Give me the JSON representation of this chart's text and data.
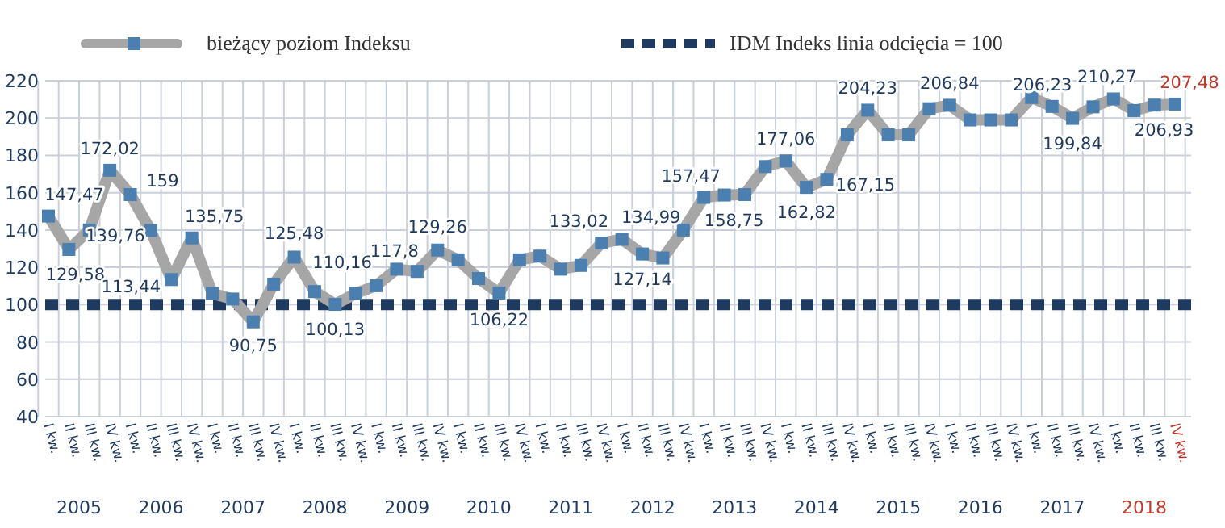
{
  "chart_data": {
    "type": "line",
    "categories": [
      "I kw.",
      "II kw.",
      "III kw.",
      "IV kw.",
      "I kw.",
      "II kw.",
      "III kw.",
      "IV kw.",
      "I kw.",
      "II kw.",
      "III kw.",
      "IV kw.",
      "I kw.",
      "II kw.",
      "III kw.",
      "IV kw.",
      "I kw.",
      "II kw.",
      "III kw.",
      "IV kw.",
      "I kw.",
      "II kw.",
      "III kw.",
      "IV kw.",
      "I kw.",
      "II kw.",
      "III kw.",
      "IV kw.",
      "I kw.",
      "II kw.",
      "III kw.",
      "IV kw.",
      "I kw.",
      "II kw.",
      "III kw.",
      "IV kw.",
      "I kw.",
      "II kw.",
      "III kw.",
      "IV kw.",
      "I kw.",
      "II kw.",
      "III kw.",
      "IV kw.",
      "I kw.",
      "II kw.",
      "III kw.",
      "IV kw.",
      "I kw.",
      "II kw.",
      "III kw.",
      "IV kw.",
      "I kw.",
      "II kw.",
      "III kw.",
      "IV kw."
    ],
    "series": [
      {
        "name": "bieżący poziom Indeksu",
        "color": "#4a7fb0",
        "values": [
          147.47,
          129.58,
          140,
          172.02,
          159,
          139.76,
          113.44,
          135.75,
          106,
          103,
          90.75,
          111,
          125.48,
          107,
          100.13,
          106,
          110.16,
          119,
          117.8,
          129.26,
          124,
          114,
          106.22,
          124,
          126,
          119,
          121,
          133.02,
          134.99,
          127.14,
          125,
          140,
          157.47,
          158.75,
          159,
          174,
          177.06,
          162.82,
          167.15,
          191,
          204.23,
          191,
          191,
          205,
          206.84,
          199,
          199,
          199,
          211,
          206.23,
          199.84,
          206,
          210.27,
          204,
          206.93,
          207.48
        ],
        "value_labels": [
          "147,47",
          "129,58",
          null,
          "172,02",
          "159",
          "139,76",
          "113,44",
          "135,75",
          null,
          null,
          "90,75",
          null,
          "125,48",
          null,
          "100,13",
          null,
          "110,16",
          null,
          "117,8",
          "129,26",
          null,
          null,
          "106,22",
          null,
          null,
          null,
          null,
          "133,02",
          "134,99",
          "127,14",
          null,
          null,
          "157,47",
          "158,75",
          null,
          null,
          "177,06",
          "162,82",
          "167,15",
          null,
          "204,23",
          null,
          null,
          null,
          "206,84",
          null,
          null,
          null,
          null,
          "206,23",
          "199,84",
          null,
          "210,27",
          null,
          "206,93",
          "207,48"
        ]
      }
    ],
    "ref_lines": [
      {
        "axis": "y",
        "value": 100,
        "label": "IDM Indeks linia odcięcia = 100",
        "color": "#1f3a5f",
        "line_style": "dashed"
      }
    ],
    "annotations": [
      "2005",
      "2006",
      "2007",
      "2008",
      "2009",
      "2010",
      "2011",
      "2012",
      "2013",
      "2014",
      "2015",
      "2016",
      "2017",
      "2018"
    ],
    "ylim": [
      40,
      220
    ],
    "yticks": [
      40,
      60,
      80,
      100,
      120,
      140,
      160,
      180,
      200,
      220
    ],
    "grid": true,
    "legend": "top",
    "marker": "square"
  }
}
